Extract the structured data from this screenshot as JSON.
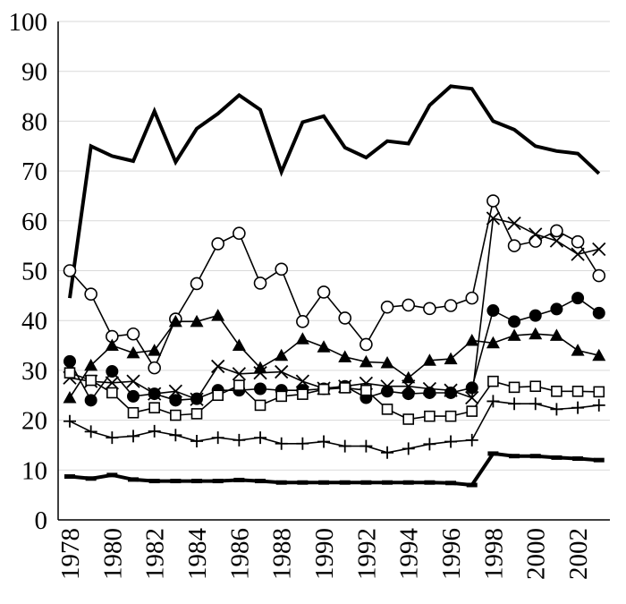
{
  "chart_data": {
    "type": "line",
    "title": "",
    "xlabel": "",
    "ylabel": "",
    "ylim": [
      0,
      100
    ],
    "yticks": [
      0,
      10,
      20,
      30,
      40,
      50,
      60,
      70,
      80,
      90,
      100
    ],
    "xticks": [
      1978,
      1980,
      1982,
      1984,
      1986,
      1988,
      1990,
      1992,
      1994,
      1996,
      1998,
      2000,
      2002
    ],
    "grid": true,
    "legend": "none",
    "x": [
      1978,
      1979,
      1980,
      1981,
      1982,
      1983,
      1984,
      1985,
      1986,
      1987,
      1988,
      1989,
      1990,
      1991,
      1992,
      1993,
      1994,
      1995,
      1996,
      1997,
      1998,
      1999,
      2000,
      2001,
      2002,
      2003
    ],
    "series": [
      {
        "marker": "none",
        "line": "thick",
        "values": [
          44.5,
          75,
          73,
          72,
          82,
          71.8,
          78.5,
          81.5,
          85.2,
          82.3,
          69.8,
          79.8,
          81,
          74.7,
          72.7,
          76,
          75.5,
          83.2,
          87,
          86.5,
          80,
          78.3,
          75,
          74,
          73.5,
          69.5
        ]
      },
      {
        "marker": "open-circle",
        "line": "thin",
        "values": [
          50,
          45.3,
          36.8,
          37.3,
          30.5,
          40.3,
          47.4,
          55.4,
          57.5,
          47.5,
          50.3,
          39.8,
          45.7,
          40.5,
          35.2,
          42.7,
          43.1,
          42.4,
          43,
          44.5,
          64,
          55,
          55.9,
          58,
          55.8,
          49
        ]
      },
      {
        "marker": "cross",
        "line": "thin",
        "values": [
          28.5,
          27.8,
          27.5,
          27.8,
          25.3,
          25.8,
          24.2,
          30.8,
          29.3,
          29.5,
          29.7,
          27.8,
          26.4,
          26.8,
          27.4,
          26.8,
          26.8,
          26.3,
          26,
          24.5,
          60.5,
          59.5,
          57.3,
          56,
          53.3,
          54.3
        ]
      },
      {
        "marker": "filled-triangle",
        "line": "thin",
        "values": [
          24.5,
          31,
          35,
          33.5,
          34,
          39.8,
          39.8,
          41,
          35,
          30.5,
          33,
          36.3,
          34.7,
          32.7,
          31.7,
          31.5,
          28.5,
          32,
          32.3,
          36,
          35.5,
          37,
          37.3,
          37,
          34,
          33
        ]
      },
      {
        "marker": "filled-circle",
        "line": "thin",
        "values": [
          31.8,
          24,
          29.8,
          24.8,
          25.3,
          24,
          24.3,
          26,
          26,
          26.3,
          26,
          26,
          26.3,
          26.8,
          24.5,
          25.8,
          25.3,
          25.5,
          25.5,
          26.5,
          42,
          39.8,
          41,
          42.3,
          44.5,
          41.5
        ]
      },
      {
        "marker": "open-square",
        "line": "thin",
        "values": [
          29.5,
          28,
          25.5,
          21.5,
          22.5,
          21,
          21.3,
          25,
          27,
          23,
          24.8,
          25.2,
          26.2,
          26.5,
          26,
          22.2,
          20.2,
          20.8,
          20.8,
          21.8,
          27.8,
          26.6,
          26.8,
          25.8,
          25.8,
          25.7
        ]
      },
      {
        "marker": "plus",
        "line": "thin",
        "values": [
          19.8,
          17.7,
          16.5,
          16.8,
          17.8,
          17,
          15.8,
          16.5,
          16,
          16.5,
          15.3,
          15.3,
          15.7,
          14.8,
          14.8,
          13.5,
          14.3,
          15.2,
          15.7,
          16,
          23.8,
          23.3,
          23.3,
          22.2,
          22.5,
          23
        ]
      },
      {
        "marker": "dash",
        "line": "thick",
        "values": [
          8.7,
          8.3,
          9,
          8.1,
          7.8,
          7.8,
          7.8,
          7.8,
          8,
          7.8,
          7.5,
          7.5,
          7.5,
          7.5,
          7.5,
          7.5,
          7.5,
          7.5,
          7.4,
          7,
          13.3,
          12.8,
          12.8,
          12.5,
          12.3,
          12
        ]
      }
    ]
  }
}
